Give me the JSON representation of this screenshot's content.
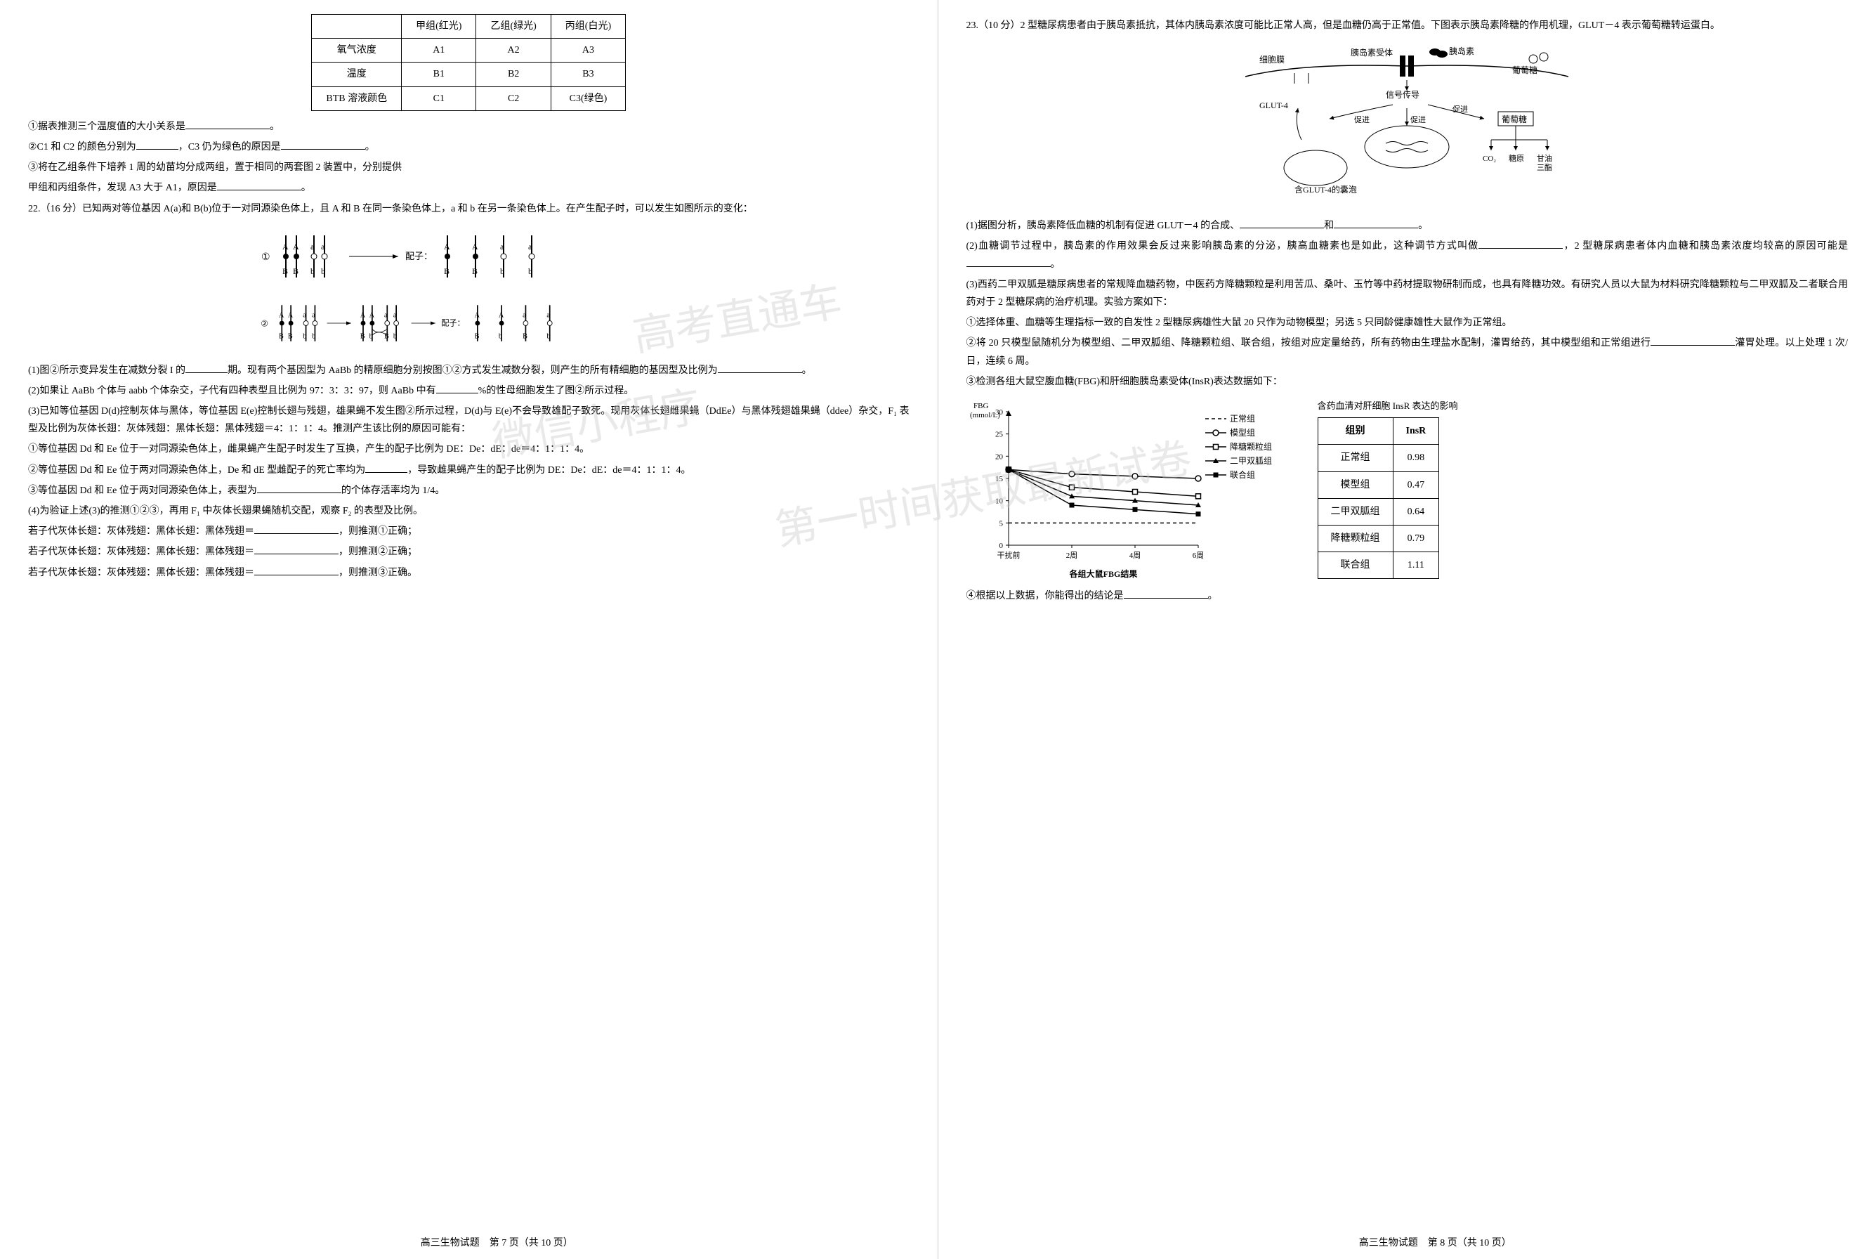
{
  "left_page": {
    "table1": {
      "headers": [
        "",
        "甲组(红光)",
        "乙组(绿光)",
        "丙组(白光)"
      ],
      "rows": [
        [
          "氧气浓度",
          "A1",
          "A2",
          "A3"
        ],
        [
          "温度",
          "B1",
          "B2",
          "B3"
        ],
        [
          "BTB 溶液颜色",
          "C1",
          "C2",
          "C3(绿色)"
        ]
      ]
    },
    "q1_1": "①据表推测三个温度值的大小关系是",
    "q1_1_end": "。",
    "q1_2a": "②C1 和 C2 的颜色分别为",
    "q1_2b": "，C3 仍为绿色的原因是",
    "q1_2_end": "。",
    "q1_3a": "③将在乙组条件下培养 1 周的幼苗均分成两组，置于相同的两套图 2 装置中，分别提供",
    "q1_3b": "甲组和丙组条件，发现 A3 大于 A1，原因是",
    "q1_3_end": "。",
    "q22_intro": "22.（16 分）已知两对等位基因 A(a)和 B(b)位于一对同源染色体上，且 A 和 B 在同一条染色体上，a 和 b 在另一条染色体上。在产生配子时，可以发生如图所示的变化：",
    "diagram1_label": "①",
    "diagram1_text": "配子：",
    "diagram2_label": "②",
    "diagram2_text": "配子：",
    "q22_1a": "(1)图②所示变异发生在减数分裂 I 的",
    "q22_1b": "期。现有两个基因型为 AaBb 的精原细胞分别按图①②方式发生减数分裂，则产生的所有精细胞的基因型及比例为",
    "q22_1_end": "。",
    "q22_2a": "(2)如果让 AaBb 个体与 aabb 个体杂交，子代有四种表型且比例为 97：3：3：97，则 AaBb 中有",
    "q22_2b": "%的性母细胞发生了图②所示过程。",
    "q22_3a": "(3)已知等位基因 D(d)控制灰体与黑体，等位基因 E(e)控制长翅与残翅，雄果蝇不发生图②所示过程，D(d)与 E(e)不会导致雄配子致死。现用灰体长翅雌果蝇（DdEe）与黑体残翅雄果蝇（ddee）杂交，F₁ 表型及比例为灰体长翅：灰体残翅：黑体长翅：黑体残翅＝4：1：1：4。推测产生该比例的原因可能有：",
    "q22_3_1": "①等位基因 Dd 和 Ee 位于一对同源染色体上，雌果蝇产生配子时发生了互换，产生的配子比例为 DE：De：dE：de＝4：1：1：4。",
    "q22_3_2a": "②等位基因 Dd 和 Ee 位于两对同源染色体上，De 和 dE 型雌配子的死亡率均为",
    "q22_3_2b": "，导致雌果蝇产生的配子比例为 DE：De：dE：de＝4：1：1：4。",
    "q22_3_3a": "③等位基因 Dd 和 Ee 位于两对同源染色体上，表型为",
    "q22_3_3b": "的个体存活率均为 1/4。",
    "q22_4a": "(4)为验证上述(3)的推测①②③，再用 F₁ 中灰体长翅果蝇随机交配，观察 F₂ 的表型及比例。",
    "q22_4_1a": "若子代灰体长翅：灰体残翅：黑体长翅：黑体残翅＝",
    "q22_4_1b": "，则推测①正确；",
    "q22_4_2a": "若子代灰体长翅：灰体残翅：黑体长翅：黑体残翅＝",
    "q22_4_2b": "，则推测②正确；",
    "q22_4_3a": "若子代灰体长翅：灰体残翅：黑体长翅：黑体残翅＝",
    "q22_4_3b": "，则推测③正确。",
    "footer": "高三生物试题　第 7 页（共 10 页）"
  },
  "right_page": {
    "q23_intro": "23.（10 分）2 型糖尿病患者由于胰岛素抵抗，其体内胰岛素浓度可能比正常人高，但是血糖仍高于正常值。下图表示胰岛素降糖的作用机理，GLUT－4 表示葡萄糖转运蛋白。",
    "diagram_labels": {
      "membrane": "细胞膜",
      "receptor": "胰岛素受体",
      "insulin": "胰岛素",
      "glucose": "葡萄糖",
      "glut4": "GLUT-4",
      "signal": "信号传导",
      "promote": "促进",
      "glucose2": "葡萄糖",
      "co2": "CO₂",
      "glycogen": "糖原",
      "fat": "甘油三酯",
      "vesicle": "含GLUT-4的囊泡"
    },
    "q23_1a": "(1)据图分析，胰岛素降低血糖的机制有促进 GLUT－4 的合成、",
    "q23_1b": "和",
    "q23_1_end": "。",
    "q23_2a": "(2)血糖调节过程中，胰岛素的作用效果会反过来影响胰岛素的分泌，胰高血糖素也是如此，这种调节方式叫做",
    "q23_2b": "，2 型糖尿病患者体内血糖和胰岛素浓度均较高的原因可能是",
    "q23_2_end": "。",
    "q23_3a": "(3)西药二甲双胍是糖尿病患者的常规降血糖药物，中医药方降糖颗粒是利用苦瓜、桑叶、玉竹等中药材提取物研制而成，也具有降糖功效。有研究人员以大鼠为材料研究降糖颗粒与二甲双胍及二者联合用药对于 2 型糖尿病的治疗机理。实验方案如下：",
    "q23_3_1": "①选择体重、血糖等生理指标一致的自发性 2 型糖尿病雄性大鼠 20 只作为动物模型；另选 5 只同龄健康雄性大鼠作为正常组。",
    "q23_3_2a": "②将 20 只模型鼠随机分为模型组、二甲双胍组、降糖颗粒组、联合组，按组对应定量给药，所有药物由生理盐水配制，灌胃给药，其中模型组和正常组进行",
    "q23_3_2b": "灌胃处理。以上处理 1 次/日，连续 6 周。",
    "q23_3_3": "③检测各组大鼠空腹血糖(FBG)和肝细胞胰岛素受体(InsR)表达数据如下：",
    "chart": {
      "ylabel": "FBG\n(mmol/L)",
      "ylim": [
        0,
        30
      ],
      "ytick_step": 5,
      "xlabel": "各组大鼠FBG结果",
      "xticks": [
        "干扰前",
        "2周",
        "4周",
        "6周"
      ],
      "legend": [
        "正常组",
        "模型组",
        "降糖颗粒组",
        "二甲双胍组",
        "联合组"
      ],
      "series": {
        "normal": {
          "values": [
            5,
            5,
            5,
            5
          ],
          "style": "dashed",
          "marker": "none",
          "color": "#000"
        },
        "model": {
          "values": [
            17,
            16,
            15.5,
            15
          ],
          "style": "solid",
          "marker": "circle",
          "color": "#000"
        },
        "granule": {
          "values": [
            17,
            13,
            12,
            11
          ],
          "style": "solid",
          "marker": "square",
          "color": "#000"
        },
        "metformin": {
          "values": [
            17,
            11,
            10,
            9
          ],
          "style": "solid",
          "marker": "triangle",
          "color": "#000"
        },
        "combo": {
          "values": [
            17,
            9,
            8,
            7
          ],
          "style": "solid",
          "marker": "square-filled",
          "color": "#000"
        }
      }
    },
    "insr_table": {
      "title": "含药血清对肝细胞 InsR 表达的影响",
      "headers": [
        "组别",
        "InsR"
      ],
      "rows": [
        [
          "正常组",
          "0.98"
        ],
        [
          "模型组",
          "0.47"
        ],
        [
          "二甲双胍组",
          "0.64"
        ],
        [
          "降糖颗粒组",
          "0.79"
        ],
        [
          "联合组",
          "1.11"
        ]
      ]
    },
    "q23_4": "④根据以上数据，你能得出的结论是",
    "q23_4_end": "。",
    "footer": "高三生物试题　第 8 页（共 10 页）"
  },
  "watermark1": "高考直通车",
  "watermark2": "微信小程序",
  "watermark3": "第一时间获取最新试卷"
}
